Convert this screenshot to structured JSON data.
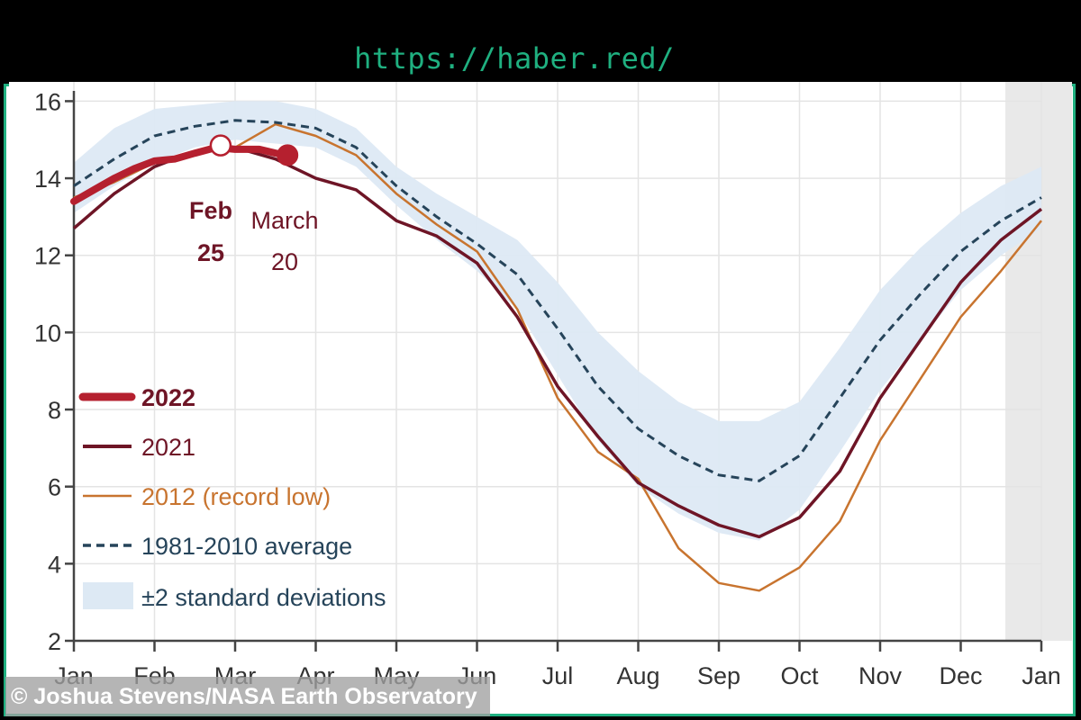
{
  "page": {
    "url": "https://haber.red/",
    "credit": "© Joshua Stevens/NASA Earth Observatory"
  },
  "chart_data": {
    "type": "line",
    "title": "",
    "xlabel": "",
    "ylabel": "",
    "ylim": [
      2,
      16.5
    ],
    "yticks": [
      2,
      4,
      6,
      8,
      10,
      12,
      14,
      16
    ],
    "months": [
      "Jan",
      "Feb",
      "Mar",
      "Apr",
      "May",
      "Jun",
      "Jul",
      "Aug",
      "Sep",
      "Oct",
      "Nov",
      "Dec",
      "Jan"
    ],
    "grid": true,
    "legend_position": "bottom-left",
    "legend": {
      "y2022": "2022",
      "y2021": "2021",
      "y2012": "2012 (record low)",
      "avg": "1981-2010 average",
      "band": "±2 standard deviations"
    },
    "annotations": {
      "max_label_top": "Feb",
      "max_label_bottom": "25",
      "current_label_top": "March",
      "current_label_bottom": "20"
    },
    "colors": {
      "y2022": "#b5202f",
      "y2021": "#6e1526",
      "y2012": "#c8742f",
      "avg": "#26445a",
      "band": "#dde9f4",
      "grid": "#e4e4e4"
    },
    "series": [
      {
        "name": "2022",
        "x": [
          0,
          0.25,
          0.5,
          0.75,
          1.0,
          1.25,
          1.5,
          1.77,
          2.0,
          2.3,
          2.5,
          2.65
        ],
        "values": [
          13.4,
          13.7,
          14.0,
          14.25,
          14.45,
          14.5,
          14.65,
          14.8,
          14.75,
          14.75,
          14.65,
          14.6
        ]
      },
      {
        "name": "2021",
        "x": [
          0,
          0.5,
          1,
          1.5,
          2,
          2.5,
          3,
          3.5,
          4,
          4.5,
          5,
          5.5,
          6,
          6.5,
          7,
          7.5,
          8,
          8.5,
          9,
          9.5,
          10,
          10.5,
          11,
          11.5,
          12
        ],
        "values": [
          12.7,
          13.6,
          14.3,
          14.7,
          14.8,
          14.5,
          14.0,
          13.7,
          12.9,
          12.5,
          11.8,
          10.4,
          8.6,
          7.3,
          6.1,
          5.5,
          5.0,
          4.7,
          5.2,
          6.4,
          8.3,
          9.8,
          11.3,
          12.4,
          13.2
        ]
      },
      {
        "name": "2012 (record low)",
        "x": [
          0,
          0.5,
          1,
          1.5,
          2,
          2.5,
          3,
          3.5,
          4,
          4.5,
          5,
          5.5,
          6,
          6.5,
          7,
          7.5,
          8,
          8.5,
          9,
          9.5,
          10,
          10.5,
          11,
          11.5,
          12
        ],
        "values": [
          13.5,
          13.9,
          14.4,
          14.7,
          14.8,
          15.4,
          15.1,
          14.6,
          13.6,
          12.8,
          12.1,
          10.6,
          8.3,
          6.9,
          6.2,
          4.4,
          3.5,
          3.3,
          3.9,
          5.1,
          7.2,
          8.8,
          10.4,
          11.6,
          12.9
        ]
      },
      {
        "name": "1981-2010 average",
        "x": [
          0,
          0.5,
          1,
          1.5,
          2,
          2.5,
          3,
          3.5,
          4,
          4.5,
          5,
          5.5,
          6,
          6.5,
          7,
          7.5,
          8,
          8.5,
          9,
          9.5,
          10,
          10.5,
          11,
          11.5,
          12
        ],
        "values": [
          13.8,
          14.5,
          15.1,
          15.35,
          15.5,
          15.45,
          15.3,
          14.8,
          13.8,
          13.0,
          12.3,
          11.5,
          10.1,
          8.6,
          7.5,
          6.8,
          6.3,
          6.15,
          6.8,
          8.3,
          9.8,
          11.0,
          12.1,
          12.9,
          13.5
        ]
      }
    ],
    "band": {
      "name": "±2 standard deviations",
      "x": [
        0,
        0.5,
        1,
        1.5,
        2,
        2.5,
        3,
        3.5,
        4,
        4.5,
        5,
        5.5,
        6,
        6.5,
        7,
        7.5,
        8,
        8.5,
        9,
        9.5,
        10,
        10.5,
        11,
        11.5,
        12
      ],
      "upper": [
        14.4,
        15.3,
        15.8,
        15.9,
        16.0,
        16.0,
        15.8,
        15.3,
        14.3,
        13.6,
        13.0,
        12.4,
        11.3,
        10.0,
        9.0,
        8.2,
        7.7,
        7.7,
        8.2,
        9.6,
        11.1,
        12.2,
        13.1,
        13.8,
        14.3
      ],
      "lower": [
        13.1,
        13.8,
        14.4,
        14.8,
        15.0,
        14.9,
        14.8,
        14.3,
        13.3,
        12.4,
        11.6,
        10.6,
        8.9,
        7.2,
        6.0,
        5.3,
        4.8,
        4.6,
        5.4,
        6.9,
        8.5,
        9.8,
        11.1,
        12.0,
        12.7
      ]
    },
    "points": [
      {
        "name": "Feb 25 maximum",
        "x": 1.82,
        "y": 14.85,
        "style": "open"
      },
      {
        "name": "March 20",
        "x": 2.65,
        "y": 14.6,
        "style": "filled"
      }
    ]
  }
}
